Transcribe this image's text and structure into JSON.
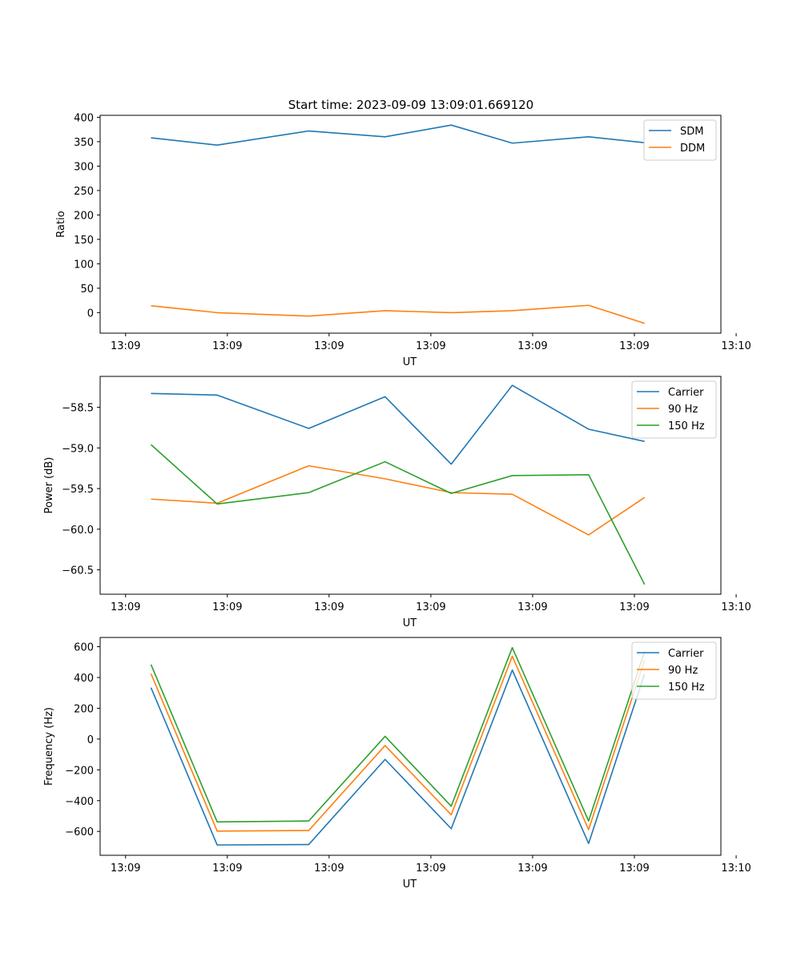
{
  "figure_title": "Start time: 2023-09-09 13:09:01.669120",
  "colors": {
    "blue": "#1f77b4",
    "orange": "#ff7f0e",
    "green": "#2ca02c"
  },
  "chart_data": [
    {
      "type": "line",
      "title": "Start time: 2023-09-09 13:09:01.669120",
      "xlabel": "UT",
      "ylabel": "Ratio",
      "x_tick_labels": [
        "13:09",
        "13:09",
        "13:09",
        "13:09",
        "13:09",
        "13:09",
        "13:10"
      ],
      "y_ticks": [
        0,
        50,
        100,
        150,
        200,
        250,
        300,
        350,
        400
      ],
      "y_tick_labels": [
        "0",
        "50",
        "100",
        "150",
        "200",
        "250",
        "300",
        "350",
        "400"
      ],
      "ylim": [
        -42,
        404
      ],
      "xlim": [
        -0.25,
        5.85
      ],
      "legend_position": "top-right",
      "x": [
        0.25,
        0.9,
        1.8,
        2.55,
        3.2,
        3.8,
        4.55,
        5.1
      ],
      "series": [
        {
          "name": "SDM",
          "color": "#1f77b4",
          "values": [
            358,
            343,
            372,
            360,
            384,
            347,
            360,
            348
          ]
        },
        {
          "name": "DDM",
          "color": "#ff7f0e",
          "values": [
            14,
            0,
            -7,
            4,
            0,
            4,
            15,
            -22
          ]
        }
      ]
    },
    {
      "type": "line",
      "xlabel": "UT",
      "ylabel": "Power (dB)",
      "x_tick_labels": [
        "13:09",
        "13:09",
        "13:09",
        "13:09",
        "13:09",
        "13:09",
        "13:10"
      ],
      "y_ticks": [
        -60.5,
        -60.0,
        -59.5,
        -59.0,
        -58.5
      ],
      "y_tick_labels": [
        "−60.5",
        "−60.0",
        "−59.5",
        "−59.0",
        "−58.5"
      ],
      "ylim": [
        -60.8,
        -58.12
      ],
      "xlim": [
        -0.25,
        5.85
      ],
      "legend_position": "top-right",
      "x": [
        0.25,
        0.9,
        1.8,
        2.55,
        3.2,
        3.8,
        4.55,
        5.1
      ],
      "series": [
        {
          "name": "Carrier",
          "color": "#1f77b4",
          "values": [
            -58.33,
            -58.35,
            -58.76,
            -58.37,
            -59.2,
            -58.23,
            -58.77,
            -58.92
          ]
        },
        {
          "name": "90 Hz",
          "color": "#ff7f0e",
          "values": [
            -59.63,
            -59.68,
            -59.22,
            -59.38,
            -59.55,
            -59.57,
            -60.07,
            -59.61
          ]
        },
        {
          "name": "150 Hz",
          "color": "#2ca02c",
          "values": [
            -58.96,
            -59.69,
            -59.55,
            -59.17,
            -59.56,
            -59.34,
            -59.33,
            -60.68
          ]
        }
      ]
    },
    {
      "type": "line",
      "xlabel": "UT",
      "ylabel": "Frequency (Hz)",
      "x_tick_labels": [
        "13:09",
        "13:09",
        "13:09",
        "13:09",
        "13:09",
        "13:09",
        "13:10"
      ],
      "y_ticks": [
        -600,
        -400,
        -200,
        0,
        200,
        400,
        600
      ],
      "y_tick_labels": [
        "−600",
        "−400",
        "−200",
        "0",
        "200",
        "400",
        "600"
      ],
      "ylim": [
        -755,
        660
      ],
      "xlim": [
        -0.25,
        5.85
      ],
      "legend_position": "top-right",
      "x": [
        0.25,
        0.9,
        1.8,
        2.55,
        3.2,
        3.8,
        4.55,
        5.1
      ],
      "series": [
        {
          "name": "Carrier",
          "color": "#1f77b4",
          "values": [
            334,
            -688,
            -685,
            -132,
            -582,
            448,
            -678,
            423
          ]
        },
        {
          "name": "90 Hz",
          "color": "#ff7f0e",
          "values": [
            424,
            -598,
            -594,
            -42,
            -492,
            538,
            -588,
            513
          ]
        },
        {
          "name": "150 Hz",
          "color": "#2ca02c",
          "values": [
            484,
            -538,
            -532,
            18,
            -436,
            594,
            -532,
            569
          ]
        }
      ]
    }
  ]
}
